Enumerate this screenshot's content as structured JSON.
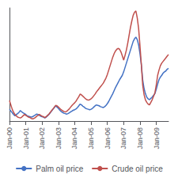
{
  "chart_data": {
    "type": "line",
    "categories": [
      "Jan-00",
      null,
      null,
      null,
      null,
      null,
      null,
      null,
      null,
      null,
      null,
      null,
      "Jan-01",
      null,
      null,
      null,
      null,
      null,
      null,
      null,
      null,
      null,
      null,
      null,
      "Jan-02",
      null,
      null,
      null,
      null,
      null,
      null,
      null,
      null,
      null,
      null,
      null,
      "Jan-03",
      null,
      null,
      null,
      null,
      null,
      null,
      null,
      null,
      null,
      null,
      null,
      "Jan-04",
      null,
      null,
      null,
      null,
      null,
      null,
      null,
      null,
      null,
      null,
      null,
      "Jan-05",
      null,
      null,
      null,
      null,
      null,
      null,
      null,
      null,
      null,
      null,
      null,
      "Jan-06",
      null,
      null,
      null,
      null,
      null,
      null,
      null,
      null,
      null,
      null,
      null,
      "Jan-07",
      null,
      null,
      null,
      null,
      null,
      null,
      null,
      null,
      null,
      null,
      null,
      "Jan-08",
      null,
      null,
      null,
      null,
      null,
      null,
      null,
      null,
      null,
      null,
      null,
      "Jan-09",
      null,
      null,
      null,
      null,
      null,
      null,
      null,
      null,
      null
    ],
    "series": [
      {
        "name": "Palm oil price",
        "color": "#4472C4",
        "values": [
          62,
          58,
          54,
          50,
          47,
          50,
          52,
          55,
          59,
          56,
          54,
          52,
          50,
          47,
          46,
          45,
          44,
          45,
          47,
          49,
          51,
          50,
          48,
          46,
          45,
          44,
          42,
          44,
          47,
          50,
          54,
          58,
          62,
          66,
          70,
          67,
          64,
          60,
          57,
          55,
          53,
          52,
          51,
          52,
          54,
          56,
          58,
          60,
          61,
          63,
          66,
          70,
          74,
          72,
          69,
          67,
          64,
          63,
          62,
          61,
          62,
          64,
          67,
          70,
          72,
          71,
          70,
          68,
          67,
          66,
          68,
          71,
          75,
          80,
          86,
          92,
          98,
          105,
          112,
          118,
          124,
          130,
          135,
          140,
          148,
          158,
          168,
          178,
          188,
          198,
          208,
          218,
          224,
          228,
          222,
          210,
          190,
          165,
          130,
          110,
          98,
          90,
          86,
          84,
          87,
          90,
          94,
          98,
          108,
          120,
          130,
          136,
          140,
          145,
          148,
          150,
          154,
          156
        ]
      },
      {
        "name": "Crude oil price",
        "color": "#C0504D",
        "values": [
          82,
          72,
          62,
          55,
          50,
          47,
          44,
          43,
          42,
          44,
          47,
          50,
          48,
          46,
          44,
          43,
          41,
          40,
          41,
          43,
          46,
          48,
          50,
          48,
          46,
          45,
          43,
          45,
          48,
          51,
          55,
          59,
          63,
          67,
          71,
          70,
          67,
          64,
          61,
          59,
          57,
          56,
          57,
          60,
          63,
          67,
          71,
          74,
          77,
          81,
          86,
          91,
          97,
          95,
          92,
          89,
          86,
          84,
          83,
          84,
          86,
          89,
          93,
          97,
          102,
          106,
          110,
          114,
          118,
          122,
          128,
          134,
          142,
          152,
          162,
          172,
          182,
          190,
          196,
          200,
          202,
          200,
          194,
          185,
          175,
          186,
          198,
          214,
          232,
          250,
          265,
          278,
          285,
          288,
          272,
          248,
          208,
          165,
          118,
          96,
          84,
          78,
          74,
          72,
          78,
          84,
          92,
          100,
          118,
          140,
          152,
          162,
          168,
          172,
          176,
          180,
          184,
          188
        ]
      }
    ],
    "ylim": [
      35,
      295
    ],
    "yticks": [],
    "grid": false,
    "tick_labels": "x",
    "legend": "bottom"
  }
}
